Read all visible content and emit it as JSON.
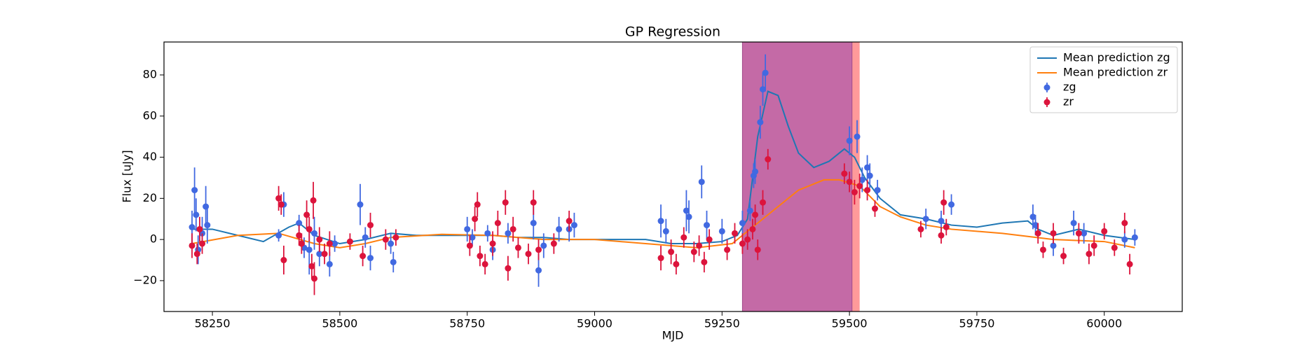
{
  "chart_data": {
    "type": "scatter",
    "title": "GP Regression",
    "xlabel": "MJD",
    "ylabel": "Flux [uJy]",
    "xlim": [
      58155,
      60153
    ],
    "ylim": [
      -35,
      96
    ],
    "xticks": [
      58250,
      58500,
      58750,
      59000,
      59250,
      59500,
      59750,
      60000
    ],
    "yticks": [
      {
        "value": -20,
        "label": "−20"
      },
      0,
      20,
      40,
      60,
      80
    ],
    "legend": "upper right",
    "spans": [
      {
        "xlim": [
          59290,
          59520
        ],
        "color": "#ff9a9a"
      },
      {
        "xlim": [
          59290,
          59505
        ],
        "color": "#c46aa6"
      }
    ],
    "lines": [
      {
        "name": "Mean prediction zg",
        "color": "#1f77b4",
        "x": [
          58210,
          58250,
          58300,
          58350,
          58400,
          58420,
          58450,
          58500,
          58550,
          58600,
          58650,
          58700,
          58750,
          58800,
          58850,
          58900,
          58950,
          59000,
          59100,
          59150,
          59200,
          59250,
          59280,
          59300,
          59320,
          59340,
          59360,
          59380,
          59400,
          59430,
          59460,
          59490,
          59510,
          59530,
          59560,
          59600,
          59650,
          59700,
          59750,
          59800,
          59850,
          59870,
          59900,
          59950,
          60000,
          60060
        ],
        "values": [
          5,
          5,
          2,
          -1,
          6,
          8,
          2,
          -2,
          0,
          3,
          2,
          2,
          2,
          2,
          1,
          1,
          0,
          0,
          0,
          -2,
          -2,
          -1,
          2,
          10,
          50,
          72,
          70,
          55,
          42,
          35,
          38,
          44,
          40,
          30,
          20,
          12,
          10,
          7,
          6,
          8,
          9,
          5,
          2,
          5,
          2,
          0
        ]
      },
      {
        "name": "Mean prediction zr",
        "color": "#ff7f0e",
        "x": [
          58210,
          58300,
          58380,
          58450,
          58500,
          58550,
          58600,
          58700,
          58800,
          58900,
          59000,
          59100,
          59200,
          59270,
          59300,
          59350,
          59400,
          59450,
          59480,
          59520,
          59560,
          59600,
          59650,
          59700,
          59800,
          59900,
          60000,
          60060
        ],
        "values": [
          -2,
          2,
          3,
          -2,
          -4,
          -2,
          1,
          2.5,
          2,
          0,
          0,
          -2,
          -4,
          -2,
          4,
          14,
          24,
          29,
          29,
          26,
          16,
          11,
          7,
          5,
          3,
          0,
          -1,
          -4
        ]
      }
    ],
    "series": [
      {
        "name": "zg",
        "color": "#4169e1",
        "x": [
          58210,
          58215,
          58218,
          58222,
          58230,
          58237,
          58240,
          58380,
          58390,
          58420,
          58430,
          58440,
          58450,
          58460,
          58480,
          58490,
          58540,
          58550,
          58560,
          58600,
          58605,
          58750,
          58760,
          58790,
          58800,
          58830,
          58880,
          58890,
          58900,
          58930,
          58950,
          58960,
          59130,
          59140,
          59180,
          59185,
          59210,
          59220,
          59250,
          59290,
          59305,
          59312,
          59315,
          59325,
          59330,
          59335,
          59500,
          59515,
          59525,
          59535,
          59540,
          59555,
          59650,
          59680,
          59700,
          59860,
          59865,
          59900,
          59940,
          59960,
          60040,
          60060
        ],
        "values": [
          6,
          24,
          12,
          -5,
          3,
          16,
          7,
          2,
          17,
          8,
          -4,
          -5,
          3,
          -7,
          -12,
          -2,
          17,
          1,
          -9,
          -2,
          -11,
          5,
          1,
          3,
          -5,
          3,
          8,
          -15,
          -3,
          5,
          5,
          7,
          9,
          4,
          14,
          11,
          28,
          7,
          4,
          8,
          14,
          31,
          33,
          57,
          73,
          81,
          48,
          50,
          29,
          35,
          31,
          24,
          10,
          9,
          17,
          11,
          7,
          -3,
          8,
          3,
          0,
          1
        ],
        "errors": [
          8,
          11,
          8,
          7,
          8,
          10,
          9,
          3,
          6,
          4,
          5,
          12,
          8,
          6,
          6,
          4,
          10,
          5,
          6,
          5,
          5,
          6,
          4,
          4,
          5,
          5,
          8,
          8,
          6,
          6,
          6,
          6,
          8,
          6,
          10,
          8,
          8,
          7,
          6,
          6,
          5,
          6,
          6,
          8,
          8,
          9,
          7,
          8,
          6,
          6,
          6,
          5,
          5,
          5,
          5,
          6,
          5,
          5,
          6,
          5,
          4,
          4
        ]
      },
      {
        "name": "zr",
        "color": "#dc143c",
        "x": [
          58210,
          58220,
          58225,
          58230,
          58380,
          58385,
          58390,
          58420,
          58425,
          58435,
          58440,
          58445,
          58448,
          58450,
          58460,
          58470,
          58480,
          58520,
          58545,
          58560,
          58590,
          58610,
          58755,
          58765,
          58770,
          58775,
          58785,
          58800,
          58810,
          58825,
          58830,
          58840,
          58850,
          58870,
          58880,
          58890,
          58920,
          58950,
          59130,
          59150,
          59160,
          59175,
          59195,
          59205,
          59215,
          59225,
          59260,
          59275,
          59290,
          59300,
          59310,
          59315,
          59320,
          59330,
          59340,
          59490,
          59500,
          59510,
          59520,
          59535,
          59550,
          59640,
          59680,
          59685,
          59690,
          59870,
          59880,
          59900,
          59920,
          59950,
          59970,
          59980,
          60000,
          60020,
          60040,
          60050
        ],
        "values": [
          -3,
          -7,
          5,
          -2,
          20,
          17,
          -10,
          2,
          -2,
          12,
          5,
          -13,
          19,
          -19,
          0,
          -7,
          -2,
          -1,
          -8,
          7,
          0,
          1,
          -3,
          10,
          17,
          -8,
          -12,
          -2,
          8,
          18,
          -14,
          5,
          -4,
          -7,
          18,
          -5,
          -2,
          9,
          -9,
          -6,
          -12,
          1,
          -6,
          -3,
          -11,
          0,
          -5,
          3,
          -2,
          0,
          5,
          12,
          -5,
          18,
          39,
          32,
          28,
          23,
          26,
          24,
          15,
          5,
          2,
          18,
          6,
          3,
          -5,
          3,
          -8,
          3,
          -7,
          -3,
          4,
          -4,
          8,
          -12
        ],
        "errors": [
          6,
          5,
          6,
          5,
          6,
          5,
          7,
          5,
          5,
          7,
          6,
          6,
          9,
          8,
          6,
          5,
          6,
          4,
          5,
          6,
          5,
          4,
          5,
          6,
          6,
          5,
          5,
          6,
          6,
          6,
          6,
          6,
          5,
          5,
          6,
          5,
          5,
          5,
          6,
          6,
          5,
          5,
          5,
          5,
          5,
          5,
          5,
          5,
          5,
          5,
          5,
          5,
          5,
          6,
          5,
          5,
          5,
          6,
          6,
          5,
          4,
          4,
          4,
          6,
          4,
          5,
          4,
          5,
          4,
          5,
          5,
          5,
          4,
          4,
          5,
          5
        ]
      }
    ]
  }
}
